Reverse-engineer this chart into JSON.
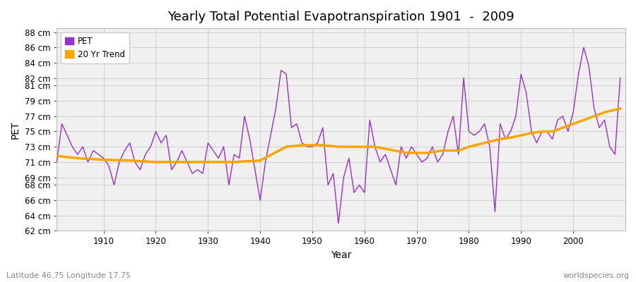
{
  "title": "Yearly Total Potential Evapotranspiration 1901  -  2009",
  "xlabel": "Year",
  "ylabel": "PET",
  "subtitle_left": "Latitude 46.75 Longitude 17.75",
  "subtitle_right": "worldspecies.org",
  "pet_color": "#9b30d0",
  "trend_color": "#FFA500",
  "background_color": "#ffffff",
  "plot_bg_color": "#f0f0f0",
  "ylim": [
    62,
    88.5
  ],
  "yticks": [
    62,
    64,
    66,
    68,
    69,
    71,
    73,
    75,
    77,
    79,
    81,
    82,
    84,
    86,
    88
  ],
  "xlim": [
    1901,
    2010
  ],
  "xticks": [
    1910,
    1920,
    1930,
    1940,
    1950,
    1960,
    1970,
    1980,
    1990,
    2000
  ],
  "years": [
    1901,
    1902,
    1903,
    1904,
    1905,
    1906,
    1907,
    1908,
    1909,
    1910,
    1911,
    1912,
    1913,
    1914,
    1915,
    1916,
    1917,
    1918,
    1919,
    1920,
    1921,
    1922,
    1923,
    1924,
    1925,
    1926,
    1927,
    1928,
    1929,
    1930,
    1931,
    1932,
    1933,
    1934,
    1935,
    1936,
    1937,
    1938,
    1939,
    1940,
    1941,
    1942,
    1943,
    1944,
    1945,
    1946,
    1947,
    1948,
    1949,
    1950,
    1951,
    1952,
    1953,
    1954,
    1955,
    1956,
    1957,
    1958,
    1959,
    1960,
    1961,
    1962,
    1963,
    1964,
    1965,
    1966,
    1967,
    1968,
    1969,
    1970,
    1971,
    1972,
    1973,
    1974,
    1975,
    1976,
    1977,
    1978,
    1979,
    1980,
    1981,
    1982,
    1983,
    1984,
    1985,
    1986,
    1987,
    1988,
    1989,
    1990,
    1991,
    1992,
    1993,
    1994,
    1995,
    1996,
    1997,
    1998,
    1999,
    2000,
    2001,
    2002,
    2003,
    2004,
    2005,
    2006,
    2007,
    2008,
    2009
  ],
  "pet": [
    71.0,
    76.0,
    74.5,
    73.0,
    72.0,
    73.0,
    71.0,
    72.5,
    72.0,
    71.5,
    70.5,
    68.0,
    71.0,
    72.5,
    73.5,
    71.0,
    70.0,
    72.0,
    73.0,
    75.0,
    73.5,
    74.5,
    70.0,
    71.0,
    72.5,
    71.0,
    69.5,
    70.0,
    69.5,
    73.5,
    72.5,
    71.5,
    73.0,
    68.0,
    72.0,
    71.5,
    77.0,
    74.0,
    70.0,
    66.0,
    71.0,
    74.5,
    78.0,
    83.0,
    82.5,
    75.5,
    76.0,
    73.5,
    73.0,
    73.0,
    73.5,
    75.5,
    68.0,
    69.5,
    63.0,
    69.0,
    71.5,
    67.0,
    68.0,
    67.0,
    76.5,
    73.0,
    71.0,
    72.0,
    70.0,
    68.0,
    73.0,
    71.5,
    73.0,
    72.0,
    71.0,
    71.5,
    73.0,
    71.0,
    72.0,
    75.0,
    77.0,
    72.0,
    82.0,
    75.0,
    74.5,
    75.0,
    76.0,
    73.0,
    64.5,
    76.0,
    74.0,
    75.0,
    77.0,
    82.5,
    80.0,
    75.0,
    73.5,
    75.0,
    75.0,
    74.0,
    76.5,
    77.0,
    75.0,
    77.5,
    82.5,
    86.0,
    83.5,
    78.0,
    75.5,
    76.5,
    73.0,
    72.0,
    82.0
  ],
  "trend_years": [
    1901,
    1905,
    1910,
    1915,
    1920,
    1925,
    1930,
    1935,
    1940,
    1945,
    1948,
    1950,
    1952,
    1955,
    1958,
    1962,
    1968,
    1972,
    1975,
    1978,
    1980,
    1983,
    1986,
    1988,
    1990,
    1992,
    1994,
    1996,
    1998,
    2000,
    2002,
    2004,
    2006,
    2009
  ],
  "trend": [
    71.8,
    71.5,
    71.3,
    71.2,
    71.0,
    71.0,
    71.0,
    71.0,
    71.2,
    73.0,
    73.2,
    73.2,
    73.2,
    73.0,
    73.0,
    73.0,
    72.2,
    72.2,
    72.5,
    72.5,
    73.0,
    73.5,
    74.0,
    74.2,
    74.5,
    74.8,
    75.0,
    75.0,
    75.5,
    76.0,
    76.5,
    77.0,
    77.5,
    78.0
  ]
}
